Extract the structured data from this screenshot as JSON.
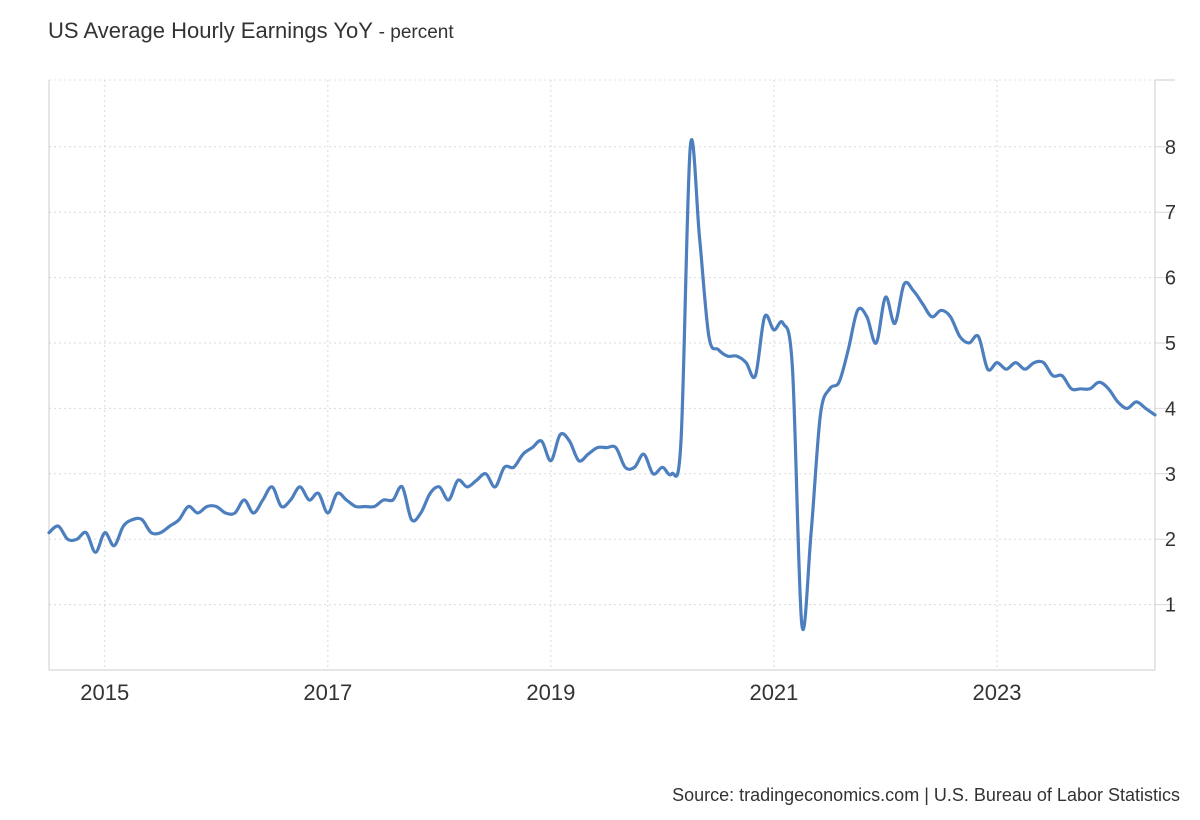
{
  "title": "US Average Hourly Earnings YoY",
  "subtitle": "- percent",
  "source": "Source: tradingeconomics.com | U.S. Bureau of Labor Statistics",
  "chart_data": {
    "type": "line",
    "title": "US Average Hourly Earnings YoY",
    "unit": "percent",
    "x_range": [
      "2014-07",
      "2024-06"
    ],
    "ylim": [
      0,
      9
    ],
    "y_ticks": [
      1,
      2,
      3,
      4,
      5,
      6,
      7,
      8
    ],
    "x_ticks": [
      "2015",
      "2017",
      "2019",
      "2021",
      "2023"
    ],
    "grid": true,
    "line_color": "#4d7fbf",
    "series": [
      {
        "x": [
          "2014-07",
          "2014-08",
          "2014-09",
          "2014-10",
          "2014-11",
          "2014-12",
          "2015-01",
          "2015-02",
          "2015-03",
          "2015-04",
          "2015-05",
          "2015-06",
          "2015-07",
          "2015-08",
          "2015-09",
          "2015-10",
          "2015-11",
          "2015-12",
          "2016-01",
          "2016-02",
          "2016-03",
          "2016-04",
          "2016-05",
          "2016-06",
          "2016-07",
          "2016-08",
          "2016-09",
          "2016-10",
          "2016-11",
          "2016-12",
          "2017-01",
          "2017-02",
          "2017-03",
          "2017-04",
          "2017-05",
          "2017-06",
          "2017-07",
          "2017-08",
          "2017-09",
          "2017-10",
          "2017-11",
          "2017-12",
          "2018-01",
          "2018-02",
          "2018-03",
          "2018-04",
          "2018-05",
          "2018-06",
          "2018-07",
          "2018-08",
          "2018-09",
          "2018-10",
          "2018-11",
          "2018-12",
          "2019-01",
          "2019-02",
          "2019-03",
          "2019-04",
          "2019-05",
          "2019-06",
          "2019-07",
          "2019-08",
          "2019-09",
          "2019-10",
          "2019-11",
          "2019-12",
          "2020-01",
          "2020-02",
          "2020-03",
          "2020-04",
          "2020-05",
          "2020-06",
          "2020-07",
          "2020-08",
          "2020-09",
          "2020-10",
          "2020-11",
          "2020-12",
          "2021-01",
          "2021-02",
          "2021-03",
          "2021-04",
          "2021-05",
          "2021-06",
          "2021-07",
          "2021-08",
          "2021-09",
          "2021-10",
          "2021-11",
          "2021-12",
          "2022-01",
          "2022-02",
          "2022-03",
          "2022-04",
          "2022-05",
          "2022-06",
          "2022-07",
          "2022-08",
          "2022-09",
          "2022-10",
          "2022-11",
          "2022-12",
          "2023-01",
          "2023-02",
          "2023-03",
          "2023-04",
          "2023-05",
          "2023-06",
          "2023-07",
          "2023-08",
          "2023-09",
          "2023-10",
          "2023-11",
          "2023-12",
          "2024-01",
          "2024-02",
          "2024-03",
          "2024-04",
          "2024-05",
          "2024-06"
        ],
        "values": [
          2.1,
          2.2,
          2.0,
          2.0,
          2.1,
          1.8,
          2.1,
          1.9,
          2.2,
          2.3,
          2.3,
          2.1,
          2.1,
          2.2,
          2.3,
          2.5,
          2.4,
          2.5,
          2.5,
          2.4,
          2.4,
          2.6,
          2.4,
          2.6,
          2.8,
          2.5,
          2.6,
          2.8,
          2.6,
          2.7,
          2.4,
          2.7,
          2.6,
          2.5,
          2.5,
          2.5,
          2.6,
          2.6,
          2.8,
          2.3,
          2.4,
          2.7,
          2.8,
          2.6,
          2.9,
          2.8,
          2.9,
          3.0,
          2.8,
          3.1,
          3.1,
          3.3,
          3.4,
          3.5,
          3.2,
          3.6,
          3.5,
          3.2,
          3.3,
          3.4,
          3.4,
          3.4,
          3.1,
          3.1,
          3.3,
          3.0,
          3.1,
          3.0,
          3.5,
          8.0,
          6.6,
          5.1,
          4.9,
          4.8,
          4.8,
          4.7,
          4.5,
          5.4,
          5.2,
          5.3,
          4.6,
          0.7,
          2.1,
          3.9,
          4.3,
          4.4,
          4.9,
          5.5,
          5.4,
          5.0,
          5.7,
          5.3,
          5.9,
          5.8,
          5.6,
          5.4,
          5.5,
          5.4,
          5.1,
          5.0,
          5.1,
          4.6,
          4.7,
          4.6,
          4.7,
          4.6,
          4.7,
          4.7,
          4.5,
          4.5,
          4.3,
          4.3,
          4.3,
          4.4,
          4.3,
          4.1,
          4.0,
          4.1,
          4.0,
          3.9
        ]
      }
    ]
  }
}
